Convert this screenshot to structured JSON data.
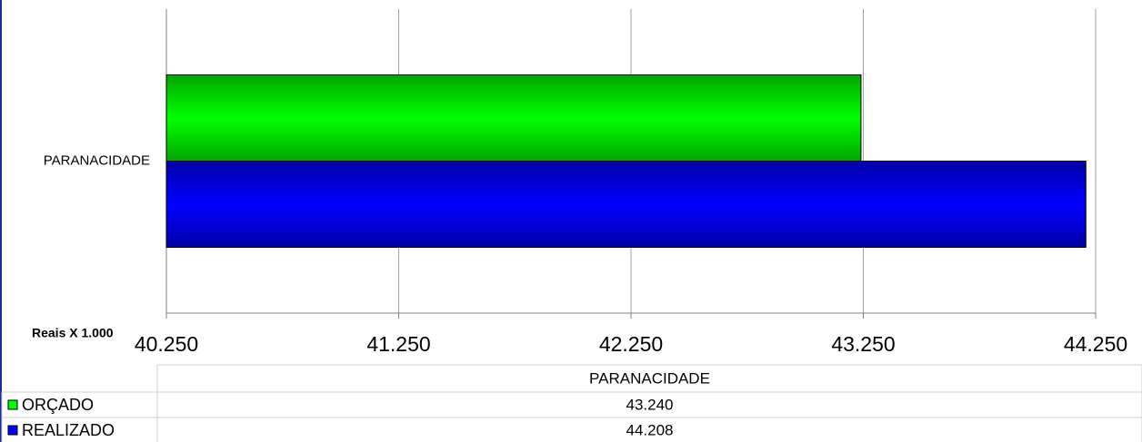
{
  "chart_data": {
    "type": "bar",
    "orientation": "horizontal",
    "categories": [
      "PARANACIDADE"
    ],
    "series": [
      {
        "name": "ORÇADO",
        "color": "#00ff00",
        "values": [
          43240
        ],
        "value_labels": [
          "43.240"
        ]
      },
      {
        "name": "REALIZADO",
        "color": "#0000ff",
        "values": [
          44208
        ],
        "value_labels": [
          "44.208"
        ]
      }
    ],
    "x_label": "Reais X 1.000",
    "xlim": [
      40250,
      44250
    ],
    "xticks": [
      {
        "value": 40250,
        "label": "40.250"
      },
      {
        "value": 41250,
        "label": "41.250"
      },
      {
        "value": 42250,
        "label": "42.250"
      },
      {
        "value": 43250,
        "label": "43.250"
      },
      {
        "value": 44250,
        "label": "44.250"
      }
    ],
    "grid": true
  }
}
